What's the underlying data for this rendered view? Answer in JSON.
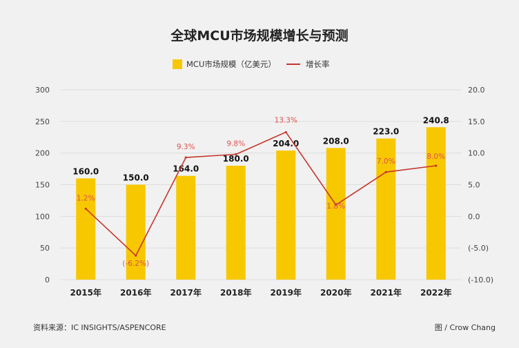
{
  "chart_data": {
    "type": "bar",
    "title": "全球MCU市场规模增长与预测",
    "categories": [
      "2015年",
      "2016年",
      "2017年",
      "2018年",
      "2019年",
      "2020年",
      "2021年",
      "2022年"
    ],
    "series": [
      {
        "name": "MCU市场规模（亿美元）",
        "type": "bar",
        "axis": "left",
        "values": [
          160.0,
          150.0,
          164.0,
          180.0,
          204.0,
          208.0,
          223.0,
          240.8
        ],
        "labels": [
          "160.0",
          "150.0",
          "164.0",
          "180.0",
          "204.0",
          "208.0",
          "223.0",
          "240.8"
        ]
      },
      {
        "name": "增长率",
        "type": "line",
        "axis": "right",
        "values": [
          1.2,
          -6.2,
          9.3,
          9.8,
          13.3,
          1.8,
          7.0,
          8.0
        ],
        "labels": [
          "1.2%",
          "(-6.2%)",
          "9.3%",
          "9.8%",
          "13.3%",
          "1.8%",
          "7.0%",
          "8.0%"
        ]
      }
    ],
    "ylim": [
      0,
      300
    ],
    "y_ticks": [
      "0",
      "50",
      "100",
      "150",
      "200",
      "250",
      "300"
    ],
    "y_tick_values": [
      0,
      50,
      100,
      150,
      200,
      250,
      300
    ],
    "y2lim": [
      -10,
      20
    ],
    "y2_ticks": [
      "(-10.0)",
      "(-5.0)",
      "0.0",
      "5.0",
      "10.0",
      "15.0",
      "20.0"
    ],
    "y2_tick_values": [
      -10,
      -5,
      0,
      5,
      10,
      15,
      20
    ],
    "grid": true,
    "legend_position": "top-center",
    "colors": {
      "bar": "#f7c800",
      "line": "#c6352c",
      "rate_label": "#e05050"
    }
  },
  "footer": {
    "source": "资料来源：IC INSIGHTS/ASPENCORE",
    "credit": "图 / Crow Chang"
  }
}
